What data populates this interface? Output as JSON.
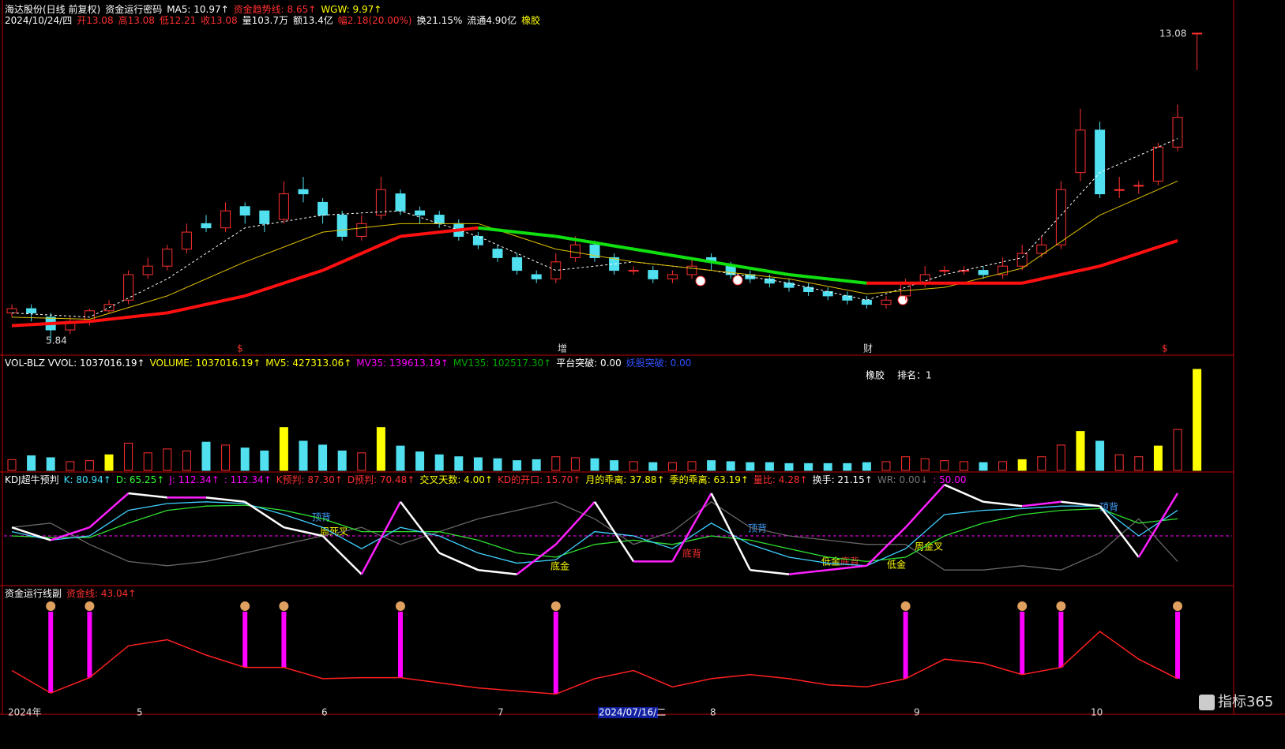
{
  "header": {
    "row1": [
      {
        "text": "海达股份(日线 前复权)",
        "color": "#ffffff"
      },
      {
        "text": "资金运行密码",
        "color": "#ffffff"
      },
      {
        "text": "MA5: 10.97↑",
        "color": "#ffffff"
      },
      {
        "text": "资金趋势线: 8.65↑",
        "color": "#ff3030"
      },
      {
        "text": "WGW: 9.97↑",
        "color": "#ffff00"
      }
    ],
    "row2": [
      {
        "text": "2024/10/24/四",
        "color": "#ffffff"
      },
      {
        "text": "开13.08",
        "color": "#ff3030"
      },
      {
        "text": "高13.08",
        "color": "#ff3030"
      },
      {
        "text": "低12.21",
        "color": "#ff3030"
      },
      {
        "text": "收13.08",
        "color": "#ff3030"
      },
      {
        "text": "量103.7万",
        "color": "#ffffff"
      },
      {
        "text": "额13.4亿",
        "color": "#ffffff"
      },
      {
        "text": "幅2.18(20.00%)",
        "color": "#ff3030"
      },
      {
        "text": "换21.15%",
        "color": "#ffffff"
      },
      {
        "text": "流通4.90亿",
        "color": "#ffffff"
      },
      {
        "text": "橡胶",
        "color": "#ffff00"
      }
    ]
  },
  "main": {
    "high_label": 13.08,
    "low_label": 5.84,
    "markers": [
      "$",
      "增",
      "财",
      "$"
    ],
    "candles": [
      [
        6.5,
        6.6,
        6.7,
        6.4
      ],
      [
        6.6,
        6.5,
        6.7,
        6.3
      ],
      [
        6.4,
        6.1,
        6.5,
        5.84
      ],
      [
        6.1,
        6.3,
        6.4,
        6.0
      ],
      [
        6.3,
        6.55,
        6.6,
        6.2
      ],
      [
        6.55,
        6.7,
        6.8,
        6.5
      ],
      [
        6.8,
        7.4,
        7.5,
        6.7
      ],
      [
        7.4,
        7.6,
        7.8,
        7.3
      ],
      [
        7.6,
        8.0,
        8.1,
        7.5
      ],
      [
        8.0,
        8.4,
        8.6,
        7.9
      ],
      [
        8.6,
        8.5,
        8.8,
        8.4
      ],
      [
        8.5,
        8.9,
        9.1,
        8.4
      ],
      [
        9.0,
        8.8,
        9.1,
        8.6
      ],
      [
        8.9,
        8.6,
        8.9,
        8.4
      ],
      [
        8.7,
        9.3,
        9.6,
        8.6
      ],
      [
        9.4,
        9.3,
        9.7,
        9.1
      ],
      [
        9.1,
        8.8,
        9.2,
        8.6
      ],
      [
        8.8,
        8.3,
        8.9,
        8.2
      ],
      [
        8.3,
        8.6,
        8.8,
        8.2
      ],
      [
        8.8,
        9.4,
        9.7,
        8.7
      ],
      [
        9.3,
        8.9,
        9.4,
        8.8
      ],
      [
        8.9,
        8.8,
        9.0,
        8.6
      ],
      [
        8.8,
        8.6,
        8.9,
        8.5
      ],
      [
        8.6,
        8.3,
        8.7,
        8.2
      ],
      [
        8.3,
        8.1,
        8.4,
        8.0
      ],
      [
        8.0,
        7.8,
        8.1,
        7.7
      ],
      [
        7.8,
        7.5,
        7.9,
        7.4
      ],
      [
        7.4,
        7.3,
        7.5,
        7.2
      ],
      [
        7.3,
        7.7,
        7.9,
        7.2
      ],
      [
        7.8,
        8.1,
        8.3,
        7.7
      ],
      [
        8.1,
        7.8,
        8.2,
        7.7
      ],
      [
        7.8,
        7.5,
        7.9,
        7.4
      ],
      [
        7.5,
        7.5,
        7.6,
        7.4
      ],
      [
        7.5,
        7.3,
        7.6,
        7.2
      ],
      [
        7.3,
        7.4,
        7.5,
        7.2
      ],
      [
        7.4,
        7.6,
        7.8,
        7.3
      ],
      [
        7.8,
        7.7,
        7.9,
        7.5
      ],
      [
        7.6,
        7.4,
        7.7,
        7.3
      ],
      [
        7.4,
        7.3,
        7.5,
        7.2
      ],
      [
        7.3,
        7.2,
        7.4,
        7.1
      ],
      [
        7.2,
        7.1,
        7.3,
        7.0
      ],
      [
        7.1,
        7.0,
        7.2,
        6.9
      ],
      [
        7.0,
        6.9,
        7.1,
        6.8
      ],
      [
        6.9,
        6.8,
        7.0,
        6.7
      ],
      [
        6.8,
        6.7,
        6.9,
        6.6
      ],
      [
        6.7,
        6.8,
        6.9,
        6.6
      ],
      [
        6.9,
        7.2,
        7.3,
        6.8
      ],
      [
        7.2,
        7.4,
        7.6,
        7.1
      ],
      [
        7.5,
        7.5,
        7.6,
        7.4
      ],
      [
        7.5,
        7.5,
        7.6,
        7.4
      ],
      [
        7.5,
        7.4,
        7.6,
        7.3
      ],
      [
        7.4,
        7.6,
        7.8,
        7.3
      ],
      [
        7.6,
        7.9,
        8.1,
        7.5
      ],
      [
        7.9,
        8.1,
        8.3,
        7.8
      ],
      [
        8.1,
        9.4,
        9.6,
        8.0
      ],
      [
        9.8,
        10.8,
        11.3,
        9.6
      ],
      [
        10.8,
        9.3,
        11.0,
        9.2
      ],
      [
        9.4,
        9.4,
        9.7,
        9.2
      ],
      [
        9.5,
        9.5,
        9.6,
        9.3
      ],
      [
        9.6,
        10.4,
        10.5,
        9.5
      ],
      [
        10.4,
        11.1,
        11.4,
        10.3
      ],
      [
        13.08,
        13.08,
        13.08,
        12.21
      ]
    ],
    "ma_x": [
      0,
      4,
      8,
      12,
      16,
      20,
      24,
      28,
      32,
      36,
      40,
      44,
      48,
      52,
      56,
      60
    ],
    "ma5": [
      6.5,
      6.4,
      7.3,
      8.5,
      8.8,
      8.9,
      8.3,
      7.5,
      7.7,
      7.5,
      7.2,
      6.8,
      7.4,
      7.8,
      9.8,
      10.6
    ],
    "ma_short": [
      6.4,
      6.35,
      6.9,
      7.7,
      8.4,
      8.6,
      8.6,
      8.0,
      7.7,
      7.5,
      7.3,
      6.95,
      7.1,
      7.55,
      8.8,
      9.6
    ],
    "ma_long": [
      6.2,
      6.3,
      6.5,
      6.9,
      7.5,
      8.3,
      8.5,
      8.3,
      8.0,
      7.7,
      7.4,
      7.2,
      7.2,
      7.2,
      7.6,
      8.2
    ]
  },
  "volume": {
    "header": [
      {
        "text": "VOL-BLZ VVOL: 1037016.19↑",
        "color": "#ffffff"
      },
      {
        "text": "VOLUME: 1037016.19↑",
        "color": "#ffff00"
      },
      {
        "text": "MV5: 427313.06↑",
        "color": "#ffff00"
      },
      {
        "text": "MV35: 139613.19↑",
        "color": "#ff00ff"
      },
      {
        "text": "MV135: 102517.30↑",
        "color": "#00aa00"
      },
      {
        "text": "平台突破: 0.00",
        "color": "#ffffff"
      },
      {
        "text": "妖股突破: 0.00",
        "color": "#3050ff"
      }
    ],
    "note": [
      "橡胶",
      "排名：1"
    ],
    "values": [
      110000,
      150000,
      130000,
      90000,
      100000,
      160000,
      280000,
      180000,
      220000,
      200000,
      290000,
      260000,
      230000,
      200000,
      440000,
      300000,
      260000,
      200000,
      180000,
      440000,
      250000,
      190000,
      160000,
      140000,
      130000,
      120000,
      100000,
      110000,
      140000,
      130000,
      120000,
      100000,
      90000,
      80000,
      80000,
      90000,
      100000,
      90000,
      80000,
      80000,
      70000,
      70000,
      70000,
      70000,
      80000,
      90000,
      140000,
      120000,
      100000,
      90000,
      80000,
      90000,
      110000,
      140000,
      260000,
      400000,
      300000,
      160000,
      140000,
      250000,
      420000,
      1037016
    ],
    "highlight": [
      5,
      14,
      19,
      52,
      55,
      59,
      61
    ]
  },
  "kdj": {
    "header": [
      {
        "text": "KDJ超牛预判",
        "color": "#ffffff"
      },
      {
        "text": "K: 80.94↑",
        "color": "#40e0ff"
      },
      {
        "text": "D: 65.25↑",
        "color": "#30ff30"
      },
      {
        "text": "J: 112.34↑",
        "color": "#ff00ff"
      },
      {
        "text": ": 112.34↑",
        "color": "#ff00ff"
      },
      {
        "text": "K预判: 87.30↑",
        "color": "#ff3030"
      },
      {
        "text": "D预判: 70.48↑",
        "color": "#ff3030"
      },
      {
        "text": "交叉天数: 4.00↑",
        "color": "#ffff00"
      },
      {
        "text": "KD的开口: 15.70↑",
        "color": "#ff3030"
      },
      {
        "text": "月的乖离: 37.88↑",
        "color": "#ffff00"
      },
      {
        "text": "季的乖离: 63.19↑",
        "color": "#ffff00"
      },
      {
        "text": "量比: 4.28↑",
        "color": "#ff3030"
      },
      {
        "text": "换手: 21.15↑",
        "color": "#ffffff"
      },
      {
        "text": "WR: 0.00↓",
        "color": "#777777"
      },
      {
        "text": ": 50.00",
        "color": "#ff00ff"
      }
    ],
    "midline": 50,
    "j": [
      60,
      45,
      60,
      100,
      95,
      95,
      90,
      60,
      50,
      5,
      90,
      30,
      10,
      5,
      40,
      90,
      20,
      20,
      100,
      10,
      5,
      10,
      15,
      60,
      110,
      90,
      85,
      90,
      85,
      25,
      100
    ],
    "k": [
      55,
      45,
      50,
      80,
      88,
      90,
      88,
      75,
      60,
      35,
      60,
      50,
      30,
      18,
      22,
      55,
      50,
      35,
      65,
      40,
      25,
      18,
      15,
      35,
      75,
      80,
      82,
      85,
      85,
      50,
      80
    ],
    "d": [
      50,
      48,
      48,
      65,
      80,
      85,
      86,
      80,
      70,
      55,
      55,
      55,
      45,
      30,
      25,
      40,
      45,
      40,
      50,
      45,
      35,
      25,
      20,
      25,
      50,
      65,
      75,
      80,
      82,
      65,
      70
    ],
    "wr": [
      60,
      65,
      40,
      20,
      15,
      20,
      30,
      40,
      50,
      60,
      40,
      55,
      70,
      80,
      90,
      70,
      40,
      55,
      90,
      60,
      50,
      45,
      40,
      40,
      10,
      10,
      15,
      10,
      30,
      70,
      20
    ],
    "annotations": [
      "顶背",
      "周死叉",
      "底金",
      "底背",
      "顶背",
      "低金",
      "底背",
      "低金",
      "周金叉",
      "顶背"
    ]
  },
  "fund": {
    "header": [
      {
        "text": "资金运行线副",
        "color": "#ffffff"
      },
      {
        "text": "资金线: 43.04↑",
        "color": "#ff3030"
      }
    ],
    "line": [
      35,
      13,
      28,
      59,
      65,
      50,
      38,
      38,
      27,
      28,
      28,
      23,
      18,
      15,
      12,
      27,
      35,
      19,
      27,
      31,
      27,
      21,
      19,
      27,
      46,
      42,
      31,
      38,
      73,
      46,
      27
    ],
    "signals": [
      2,
      4,
      12,
      14,
      20,
      28,
      46,
      52,
      54,
      60
    ]
  },
  "xaxis": {
    "labels": [
      "2024年",
      "5",
      "6",
      "7",
      "2024/07/16/二",
      "8",
      "9",
      "10"
    ]
  },
  "logo": "指标365"
}
